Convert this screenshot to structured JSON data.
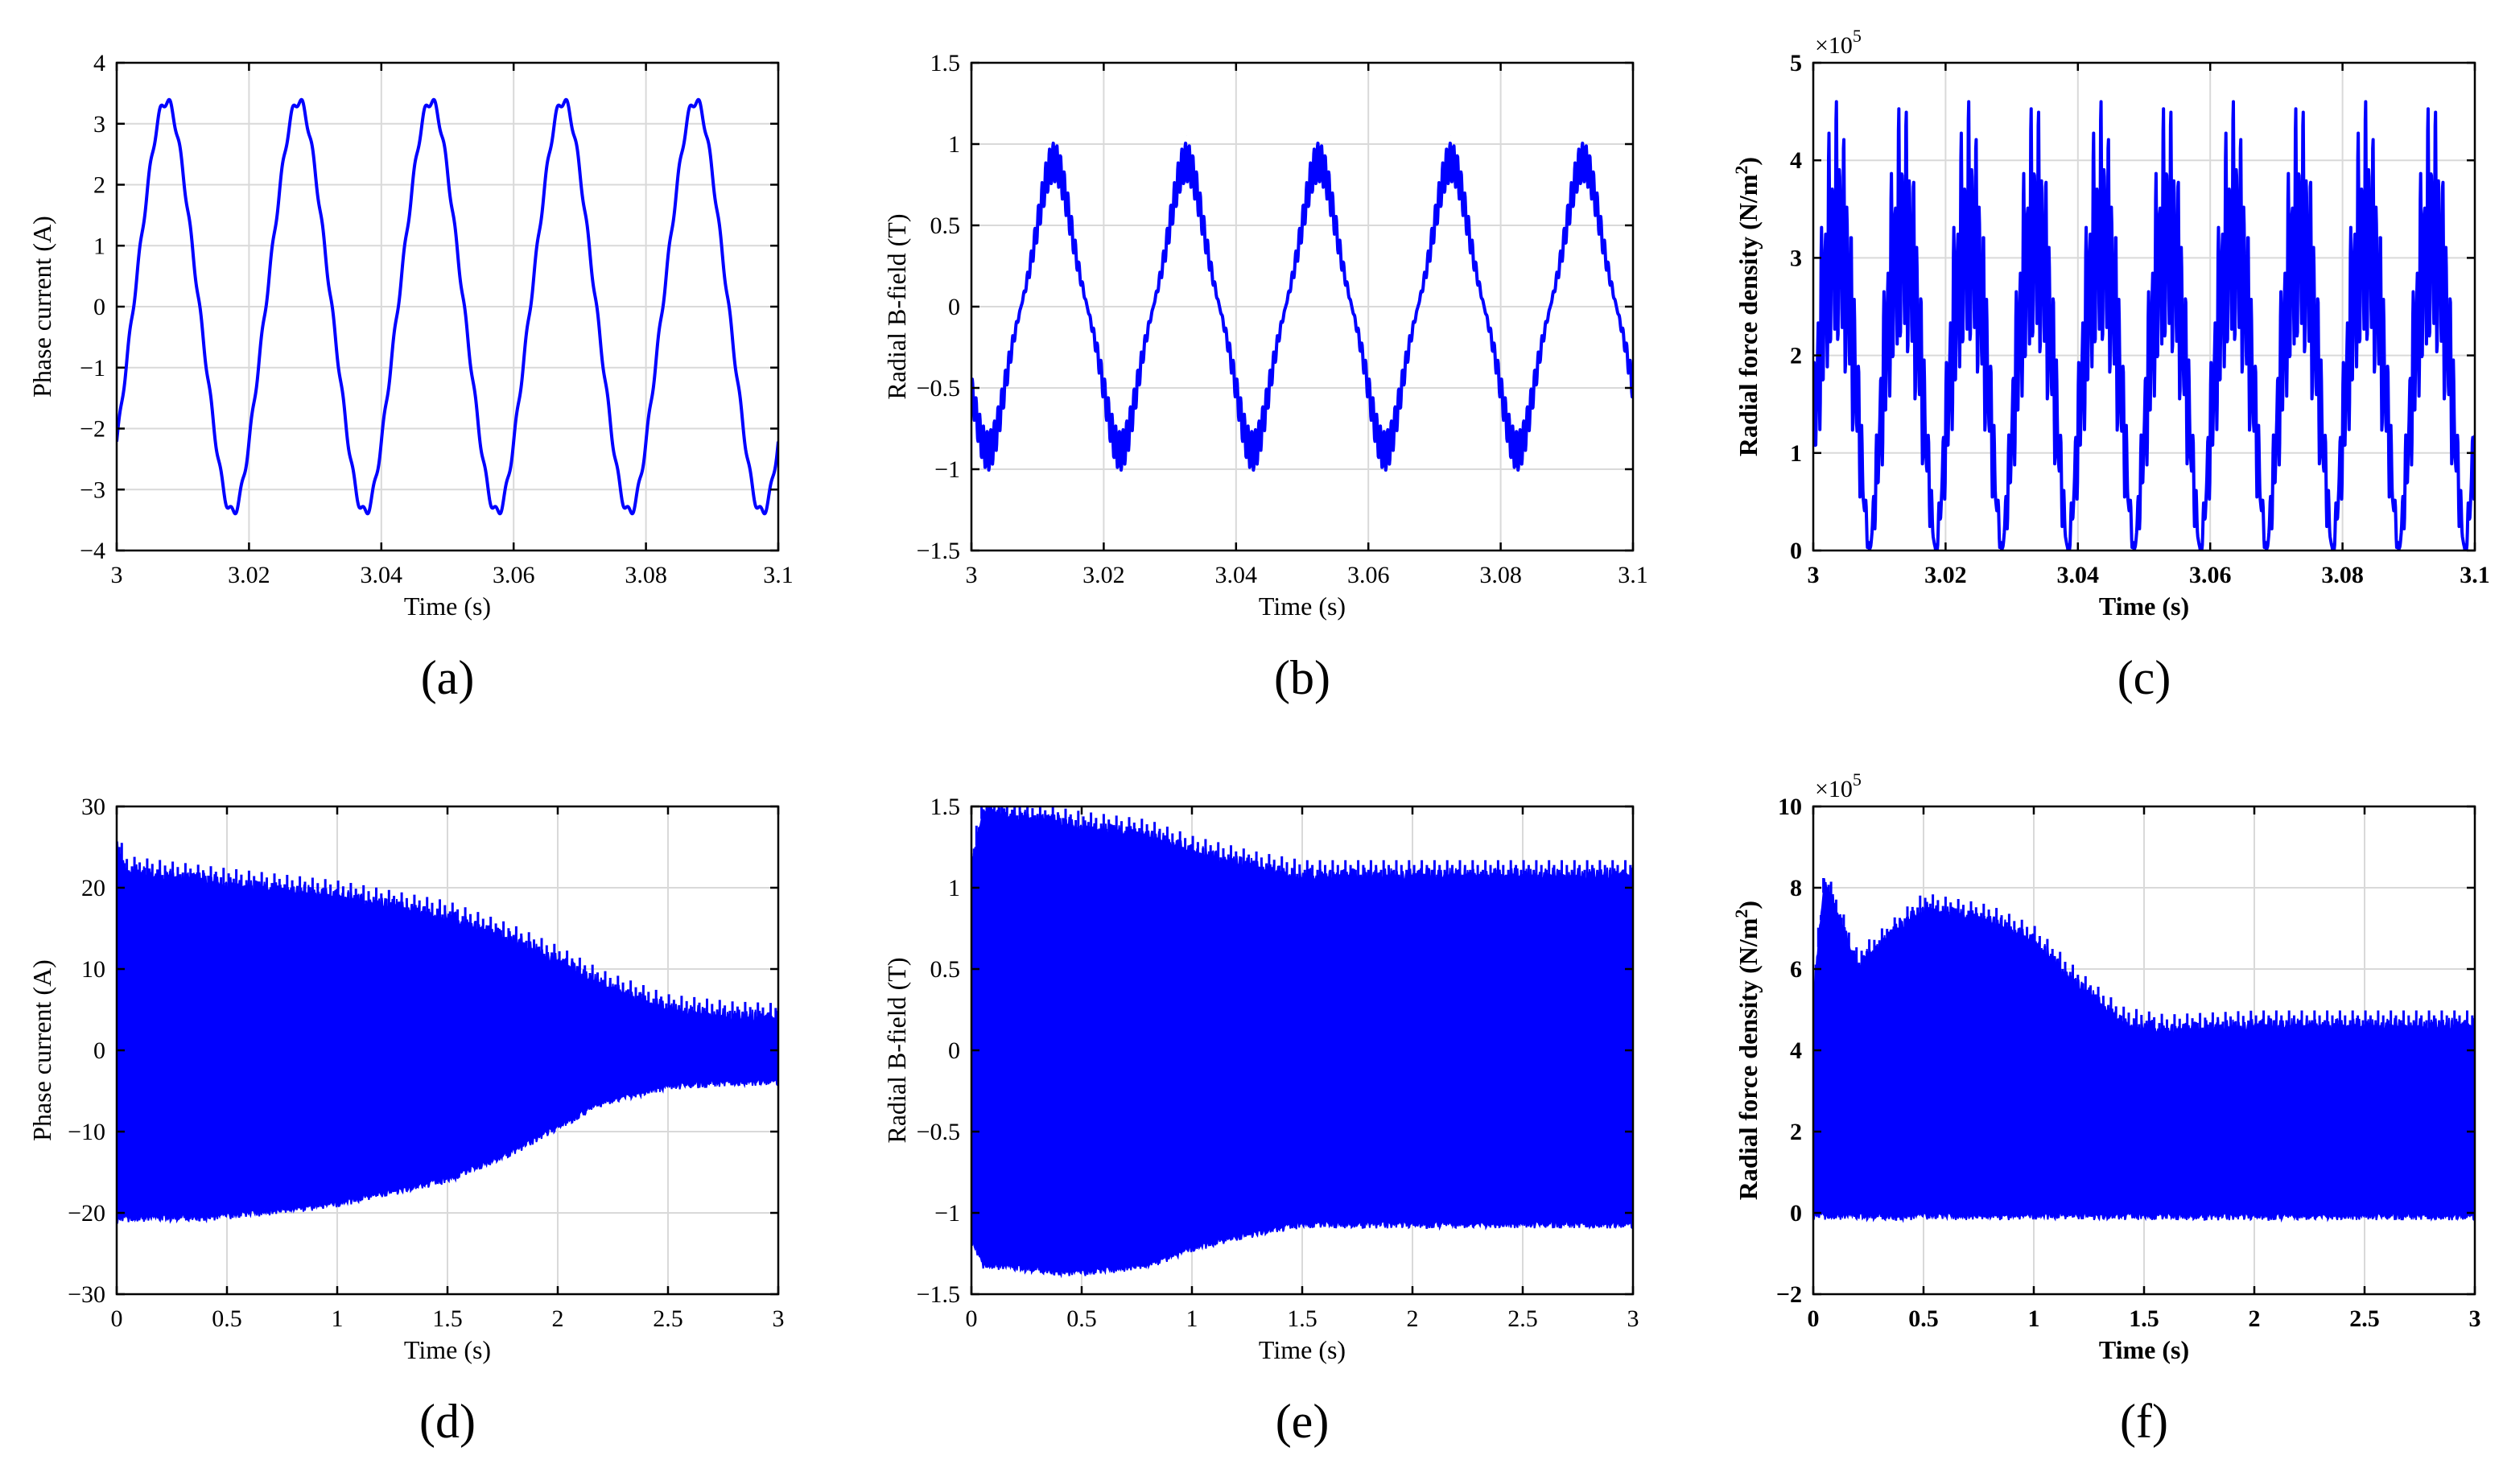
{
  "figure": {
    "panels": [
      {
        "id": "a",
        "caption": "(a)",
        "ylabel": "Phase current (A)",
        "ylabel_parts": null,
        "xlabel": "Time (s)",
        "bold_labels": false,
        "xticks": [
          "3",
          "3.02",
          "3.04",
          "3.06",
          "3.08",
          "3.1"
        ],
        "yticks": [
          "−4",
          "−3",
          "−2",
          "−1",
          "0",
          "1",
          "2",
          "3",
          "4"
        ],
        "exponent": null
      },
      {
        "id": "b",
        "caption": "(b)",
        "ylabel": "Radial B-field (T)",
        "ylabel_parts": null,
        "xlabel": "Time (s)",
        "bold_labels": false,
        "xticks": [
          "3",
          "3.02",
          "3.04",
          "3.06",
          "3.08",
          "3.1"
        ],
        "yticks": [
          "−1.5",
          "−1",
          "−0.5",
          "0",
          "0.5",
          "1",
          "1.5"
        ],
        "exponent": null
      },
      {
        "id": "c",
        "caption": "(c)",
        "ylabel": "Radial force density (N/m2)",
        "ylabel_parts": {
          "main": "Radial force density (N/m",
          "sup": "2",
          "end": ")"
        },
        "xlabel": "Time (s)",
        "bold_labels": true,
        "xticks": [
          "3",
          "3.02",
          "3.04",
          "3.06",
          "3.08",
          "3.1"
        ],
        "yticks": [
          "0",
          "1",
          "2",
          "3",
          "4",
          "5"
        ],
        "exponent": {
          "base": "×10",
          "power": "5"
        }
      },
      {
        "id": "d",
        "caption": "(d)",
        "ylabel": "Phase current (A)",
        "ylabel_parts": null,
        "xlabel": "Time (s)",
        "bold_labels": false,
        "xticks": [
          "0",
          "0.5",
          "1",
          "1.5",
          "2",
          "2.5",
          "3"
        ],
        "yticks": [
          "−30",
          "−20",
          "−10",
          "0",
          "10",
          "20",
          "30"
        ],
        "exponent": null
      },
      {
        "id": "e",
        "caption": "(e)",
        "ylabel": "Radial B-field (T)",
        "ylabel_parts": null,
        "xlabel": "Time (s)",
        "bold_labels": false,
        "xticks": [
          "0",
          "0.5",
          "1",
          "1.5",
          "2",
          "2.5",
          "3"
        ],
        "yticks": [
          "−1.5",
          "−1",
          "−0.5",
          "0",
          "0.5",
          "1",
          "1.5"
        ],
        "exponent": null
      },
      {
        "id": "f",
        "caption": "(f)",
        "ylabel": "Radial force density (N/m2)",
        "ylabel_parts": {
          "main": "Radial force density (N/m",
          "sup": "2",
          "end": ")"
        },
        "xlabel": "Time (s)",
        "bold_labels": true,
        "xticks": [
          "0",
          "0.5",
          "1",
          "1.5",
          "2",
          "2.5",
          "3"
        ],
        "yticks": [
          "−2",
          "0",
          "2",
          "4",
          "6",
          "8",
          "10"
        ],
        "exponent": {
          "base": "×10",
          "power": "5"
        }
      }
    ]
  },
  "chart_data": [
    {
      "type": "line",
      "panel": "a",
      "xlabel": "Time (s)",
      "ylabel": "Phase current (A)",
      "xlim": [
        3,
        3.1
      ],
      "ylim": [
        -4,
        4
      ],
      "grid": true,
      "color": "#0000ff",
      "signal": {
        "kind": "periodic",
        "period_s": 0.02,
        "amplitude": 3.25,
        "peak_time_s": 3.0075,
        "harmonic_ripple": 0.12
      },
      "x": [
        3.0,
        3.0075,
        3.0175,
        3.0275,
        3.0375,
        3.0475,
        3.0575,
        3.0675,
        3.0775,
        3.0875,
        3.0975,
        3.1
      ],
      "y": [
        -2.0,
        3.3,
        -3.3,
        3.35,
        -3.3,
        3.3,
        -3.3,
        3.35,
        -3.3,
        3.3,
        -3.3,
        -2.0
      ]
    },
    {
      "type": "line",
      "panel": "b",
      "xlabel": "Time (s)",
      "ylabel": "Radial B-field (T)",
      "xlim": [
        3,
        3.1
      ],
      "ylim": [
        -1.5,
        1.5
      ],
      "grid": true,
      "color": "#0000ff",
      "signal": {
        "kind": "periodic",
        "period_s": 0.02,
        "amplitude": 0.8,
        "peak_time_s": 3.0125,
        "slot_ripple": 0.12
      },
      "x": [
        3.0,
        3.0125,
        3.0225,
        3.0325,
        3.0425,
        3.0525,
        3.0625,
        3.0725,
        3.0825,
        3.0925,
        3.1
      ],
      "y": [
        -0.6,
        0.95,
        -1.0,
        1.05,
        -0.95,
        0.95,
        -1.0,
        1.05,
        -0.95,
        0.95,
        -0.55
      ]
    },
    {
      "type": "line",
      "panel": "c",
      "xlabel": "Time (s)",
      "ylabel": "Radial force density (N/m2)",
      "xlim": [
        3,
        3.1
      ],
      "ylim": [
        0,
        5
      ],
      "y_scale_factor": "1e5",
      "grid": true,
      "color": "#0000ff",
      "signal": {
        "kind": "periodic",
        "period_s": 0.01,
        "peak_value": 4.4,
        "min_value": 0
      },
      "x": [
        3.0,
        3.003,
        3.0085,
        3.0135,
        3.0185,
        3.0235,
        3.0285,
        3.0335,
        3.0385,
        3.0435,
        3.0485,
        3.0535,
        3.0585,
        3.0635,
        3.0685,
        3.0735,
        3.0785,
        3.0835,
        3.0885,
        3.0935,
        3.1
      ],
      "y": [
        1.4,
        4.2,
        0.0,
        3.6,
        0.0,
        4.45,
        0.0,
        4.45,
        0.0,
        3.7,
        0.0,
        4.0,
        0.0,
        4.3,
        0.0,
        4.45,
        0.0,
        3.8,
        0.0,
        3.9,
        1.5
      ]
    },
    {
      "type": "area",
      "panel": "d",
      "xlabel": "Time (s)",
      "ylabel": "Phase current (A)",
      "xlim": [
        0,
        3
      ],
      "ylim": [
        -30,
        30
      ],
      "grid": true,
      "color": "#0000ff",
      "envelope": {
        "x": [
          0,
          0.05,
          0.5,
          1.0,
          1.5,
          1.8,
          2.0,
          2.2,
          2.5,
          2.8,
          3.0
        ],
        "upper": [
          24.5,
          21.5,
          20.0,
          18.5,
          16.0,
          13.0,
          10.5,
          7.5,
          4.5,
          3.6,
          3.4
        ],
        "lower": [
          -20.5,
          -20.3,
          -20.0,
          -18.5,
          -15.5,
          -12.0,
          -9.0,
          -6.0,
          -4.0,
          -3.5,
          -3.4
        ]
      }
    },
    {
      "type": "area",
      "panel": "e",
      "xlabel": "Time (s)",
      "ylabel": "Radial B-field (T)",
      "xlim": [
        0,
        3
      ],
      "ylim": [
        -1.5,
        1.5
      ],
      "grid": true,
      "color": "#0000ff",
      "envelope": {
        "x": [
          0,
          0.05,
          0.5,
          0.8,
          1.0,
          1.3,
          1.5,
          2.0,
          2.5,
          3.0
        ],
        "upper": [
          1.1,
          1.45,
          1.35,
          1.3,
          1.2,
          1.1,
          1.05,
          1.05,
          1.05,
          1.05
        ],
        "lower": [
          -1.15,
          -1.3,
          -1.35,
          -1.3,
          -1.2,
          -1.1,
          -1.05,
          -1.05,
          -1.05,
          -1.05
        ]
      }
    },
    {
      "type": "area",
      "panel": "f",
      "xlabel": "Time (s)",
      "ylabel": "Radial force density (N/m2)",
      "xlim": [
        0,
        3
      ],
      "ylim": [
        -2,
        10
      ],
      "y_scale_factor": "1e5",
      "grid": true,
      "color": "#0000ff",
      "envelope": {
        "x": [
          0,
          0.05,
          0.2,
          0.5,
          0.8,
          1.0,
          1.2,
          1.4,
          1.6,
          2.0,
          2.5,
          3.0
        ],
        "upper": [
          5.2,
          8.1,
          6.0,
          7.4,
          7.1,
          6.6,
          5.5,
          4.6,
          4.4,
          4.5,
          4.5,
          4.5
        ],
        "lower": [
          0,
          0,
          0,
          0,
          0,
          0,
          0,
          0,
          0,
          0,
          0,
          0
        ]
      }
    }
  ]
}
